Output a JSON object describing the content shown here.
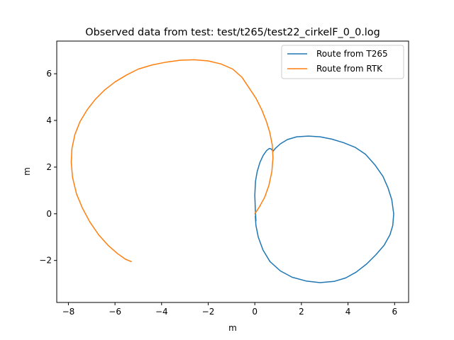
{
  "chart_data": {
    "type": "line",
    "title": "Observed data from test: test/t265/test22_cirkelF_0_0.log",
    "xlabel": "m",
    "ylabel": "m",
    "xlim": [
      -8.5,
      6.6
    ],
    "ylim": [
      -3.8,
      7.4
    ],
    "xticks": [
      -8,
      -6,
      -4,
      -2,
      0,
      2,
      4,
      6
    ],
    "yticks": [
      -2,
      0,
      2,
      4,
      6
    ],
    "grid": false,
    "legend_position": "top-right",
    "series": [
      {
        "name": "Route from T265",
        "color": "#1f77b4",
        "points": [
          [
            0.05,
            -0.3
          ],
          [
            0.02,
            0.2
          ],
          [
            0.0,
            0.8
          ],
          [
            0.03,
            1.4
          ],
          [
            0.1,
            1.8
          ],
          [
            0.22,
            2.2
          ],
          [
            0.36,
            2.5
          ],
          [
            0.5,
            2.7
          ],
          [
            0.62,
            2.8
          ],
          [
            0.7,
            2.78
          ],
          [
            0.78,
            2.68
          ],
          [
            0.9,
            2.82
          ],
          [
            1.1,
            3.0
          ],
          [
            1.4,
            3.18
          ],
          [
            1.8,
            3.3
          ],
          [
            2.3,
            3.33
          ],
          [
            2.8,
            3.3
          ],
          [
            3.3,
            3.2
          ],
          [
            3.8,
            3.05
          ],
          [
            4.3,
            2.85
          ],
          [
            4.75,
            2.55
          ],
          [
            5.15,
            2.1
          ],
          [
            5.5,
            1.6
          ],
          [
            5.72,
            1.1
          ],
          [
            5.88,
            0.6
          ],
          [
            5.96,
            0.0
          ],
          [
            5.92,
            -0.5
          ],
          [
            5.8,
            -0.9
          ],
          [
            5.55,
            -1.35
          ],
          [
            5.2,
            -1.75
          ],
          [
            4.8,
            -2.15
          ],
          [
            4.35,
            -2.5
          ],
          [
            3.9,
            -2.75
          ],
          [
            3.4,
            -2.9
          ],
          [
            2.8,
            -2.95
          ],
          [
            2.2,
            -2.88
          ],
          [
            1.6,
            -2.72
          ],
          [
            1.1,
            -2.45
          ],
          [
            0.65,
            -2.05
          ],
          [
            0.35,
            -1.55
          ],
          [
            0.15,
            -1.0
          ],
          [
            0.05,
            -0.5
          ],
          [
            0.02,
            -0.1
          ]
        ]
      },
      {
        "name": "Route from RTK",
        "color": "#ff7f0e",
        "points": [
          [
            0.0,
            0.0
          ],
          [
            0.2,
            0.3
          ],
          [
            0.42,
            0.7
          ],
          [
            0.6,
            1.2
          ],
          [
            0.73,
            1.8
          ],
          [
            0.78,
            2.4
          ],
          [
            0.75,
            2.95
          ],
          [
            0.64,
            3.5
          ],
          [
            0.5,
            3.95
          ],
          [
            0.3,
            4.45
          ],
          [
            0.05,
            4.95
          ],
          [
            -0.25,
            5.4
          ],
          [
            -0.55,
            5.85
          ],
          [
            -0.95,
            6.2
          ],
          [
            -1.45,
            6.42
          ],
          [
            -2.0,
            6.55
          ],
          [
            -2.6,
            6.6
          ],
          [
            -3.2,
            6.58
          ],
          [
            -3.8,
            6.5
          ],
          [
            -4.4,
            6.38
          ],
          [
            -5.0,
            6.2
          ],
          [
            -5.5,
            5.95
          ],
          [
            -6.0,
            5.65
          ],
          [
            -6.45,
            5.3
          ],
          [
            -6.85,
            4.9
          ],
          [
            -7.2,
            4.45
          ],
          [
            -7.5,
            3.95
          ],
          [
            -7.72,
            3.4
          ],
          [
            -7.85,
            2.8
          ],
          [
            -7.88,
            2.2
          ],
          [
            -7.82,
            1.55
          ],
          [
            -7.65,
            0.85
          ],
          [
            -7.4,
            0.25
          ],
          [
            -7.08,
            -0.35
          ],
          [
            -6.7,
            -0.9
          ],
          [
            -6.3,
            -1.35
          ],
          [
            -5.9,
            -1.7
          ],
          [
            -5.55,
            -1.95
          ],
          [
            -5.3,
            -2.05
          ]
        ]
      }
    ]
  }
}
